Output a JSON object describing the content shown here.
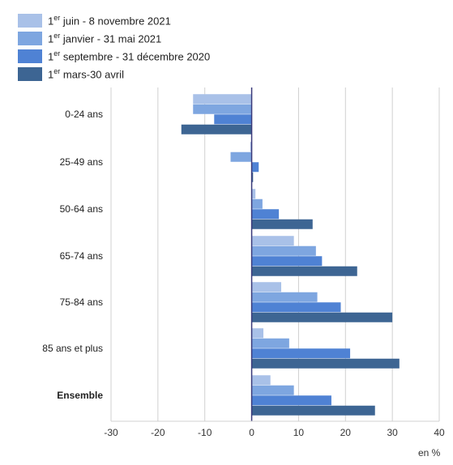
{
  "chart_data": {
    "type": "bar",
    "orientation": "horizontal",
    "categories": [
      "0-24 ans",
      "25-49 ans",
      "50-64 ans",
      "65-74 ans",
      "75-84 ans",
      "85 ans et plus",
      "Ensemble"
    ],
    "bold_categories": [
      "Ensemble"
    ],
    "series": [
      {
        "prefix": "1",
        "sup": "er",
        "rest": " juin - 8 novembre 2021",
        "color": "#a9c1e8",
        "values": [
          -12.5,
          -0.3,
          0.8,
          9,
          6.3,
          2.5,
          4
        ]
      },
      {
        "prefix": "1",
        "sup": "er",
        "rest": " janvier - 31 mai 2021",
        "color": "#7ea6e0",
        "values": [
          -12.5,
          -4.5,
          2.3,
          13.7,
          14,
          8,
          9
        ]
      },
      {
        "prefix": "1",
        "sup": "er",
        "rest": " septembre - 31 décembre 2020",
        "color": "#4f82d4",
        "values": [
          -8,
          1.5,
          5.8,
          15,
          19,
          21,
          17
        ]
      },
      {
        "prefix": "1",
        "sup": "er",
        "rest": " mars-30 avril",
        "color": "#3d6593",
        "values": [
          -15,
          0.3,
          13,
          22.5,
          30,
          31.5,
          26.3
        ]
      }
    ],
    "xlim": [
      -30,
      40
    ],
    "xticks": [
      -30,
      -20,
      -10,
      0,
      10,
      20,
      30,
      40
    ],
    "xlabel": "en %",
    "grid": "vertical",
    "legend": "top-left"
  }
}
